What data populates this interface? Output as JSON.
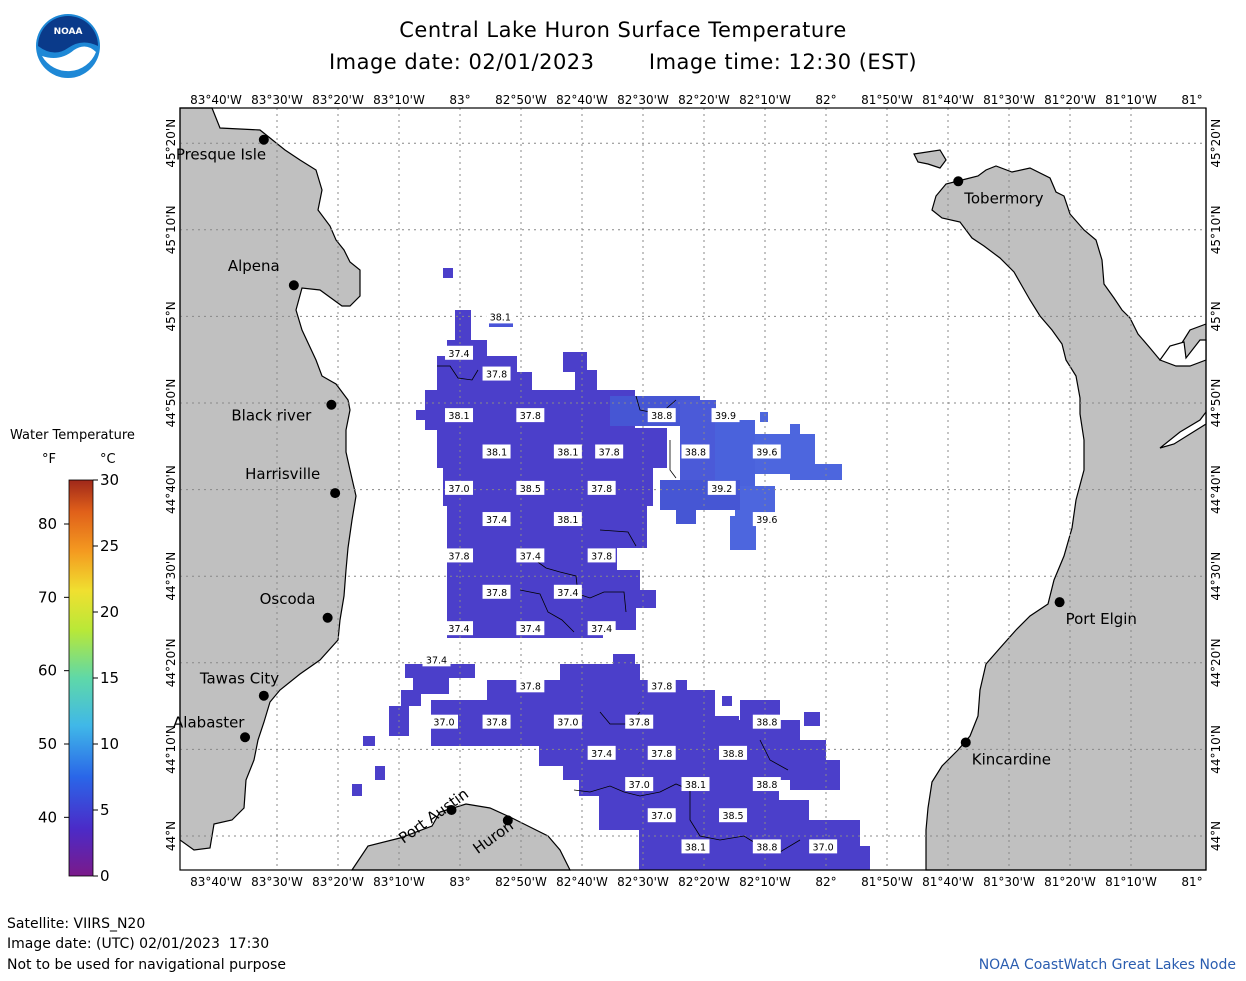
{
  "title": "Central Lake Huron Surface Temperature",
  "image_date": "Image date: 02/01/2023",
  "image_time": "Image time: 12:30 (EST)",
  "lon_labels": [
    "83°40'W",
    "83°30'W",
    "83°20'W",
    "83°10'W",
    "83°",
    "82°50'W",
    "82°40'W",
    "82°30'W",
    "82°20'W",
    "82°10'W",
    "82°",
    "81°50'W",
    "81°40'W",
    "81°30'W",
    "81°20'W",
    "81°10'W",
    "81°"
  ],
  "lat_labels": [
    "44°N",
    "44°10'N",
    "44°20'N",
    "44°30'N",
    "44°40'N",
    "44°50'N",
    "45°N",
    "45°10'N",
    "45°20'N"
  ],
  "cities": [
    {
      "name": "Presque Isle",
      "lon": -83.51,
      "lat": 45.34
    },
    {
      "name": "Alpena",
      "lon": -83.43,
      "lat": 45.06
    },
    {
      "name": "Black river",
      "lon": -83.33,
      "lat": 44.83
    },
    {
      "name": "Harrisville",
      "lon": -83.32,
      "lat": 44.66
    },
    {
      "name": "Oscoda",
      "lon": -83.34,
      "lat": 44.42
    },
    {
      "name": "Tawas City",
      "lon": -83.51,
      "lat": 44.27
    },
    {
      "name": "Alabaster",
      "lon": -83.56,
      "lat": 44.19
    },
    {
      "name": "Port Austin",
      "lon": -83.01,
      "lat": 44.05
    },
    {
      "name": "Huron",
      "lon": -82.86,
      "lat": 44.03
    },
    {
      "name": "Tobermory",
      "lon": -81.66,
      "lat": 45.26
    },
    {
      "name": "Port Elgin",
      "lon": -81.39,
      "lat": 44.45
    },
    {
      "name": "Kincardine",
      "lon": -81.64,
      "lat": 44.18
    }
  ],
  "isotherm_labels": [
    {
      "t": "38.1",
      "lon": -82.88,
      "lat": 45.0
    },
    {
      "t": "37.4",
      "lon": -82.99,
      "lat": 44.93
    },
    {
      "t": "37.8",
      "lon": -82.89,
      "lat": 44.89
    },
    {
      "t": "38.1",
      "lon": -82.99,
      "lat": 44.81
    },
    {
      "t": "37.8",
      "lon": -82.8,
      "lat": 44.81
    },
    {
      "t": "38.8",
      "lon": -82.45,
      "lat": 44.81
    },
    {
      "t": "39.9",
      "lon": -82.28,
      "lat": 44.81
    },
    {
      "t": "38.1",
      "lon": -82.89,
      "lat": 44.74
    },
    {
      "t": "38.1",
      "lon": -82.7,
      "lat": 44.74
    },
    {
      "t": "37.8",
      "lon": -82.59,
      "lat": 44.74
    },
    {
      "t": "38.8",
      "lon": -82.36,
      "lat": 44.74
    },
    {
      "t": "39.6",
      "lon": -82.17,
      "lat": 44.74
    },
    {
      "t": "37.0",
      "lon": -82.99,
      "lat": 44.67
    },
    {
      "t": "38.5",
      "lon": -82.8,
      "lat": 44.67
    },
    {
      "t": "37.8",
      "lon": -82.61,
      "lat": 44.67
    },
    {
      "t": "39.2",
      "lon": -82.29,
      "lat": 44.67
    },
    {
      "t": "37.4",
      "lon": -82.89,
      "lat": 44.61
    },
    {
      "t": "38.1",
      "lon": -82.7,
      "lat": 44.61
    },
    {
      "t": "39.6",
      "lon": -82.17,
      "lat": 44.61
    },
    {
      "t": "37.8",
      "lon": -82.99,
      "lat": 44.54
    },
    {
      "t": "37.4",
      "lon": -82.8,
      "lat": 44.54
    },
    {
      "t": "37.8",
      "lon": -82.61,
      "lat": 44.54
    },
    {
      "t": "37.8",
      "lon": -82.89,
      "lat": 44.47
    },
    {
      "t": "37.4",
      "lon": -82.7,
      "lat": 44.47
    },
    {
      "t": "37.4",
      "lon": -82.99,
      "lat": 44.4
    },
    {
      "t": "37.4",
      "lon": -82.8,
      "lat": 44.4
    },
    {
      "t": "37.4",
      "lon": -82.61,
      "lat": 44.4
    },
    {
      "t": "37.4",
      "lon": -83.05,
      "lat": 44.34
    },
    {
      "t": "37.8",
      "lon": -82.8,
      "lat": 44.29
    },
    {
      "t": "37.8",
      "lon": -82.45,
      "lat": 44.29
    },
    {
      "t": "37.0",
      "lon": -83.03,
      "lat": 44.22
    },
    {
      "t": "37.8",
      "lon": -82.89,
      "lat": 44.22
    },
    {
      "t": "37.0",
      "lon": -82.7,
      "lat": 44.22
    },
    {
      "t": "37.8",
      "lon": -82.51,
      "lat": 44.22
    },
    {
      "t": "38.8",
      "lon": -82.17,
      "lat": 44.22
    },
    {
      "t": "37.4",
      "lon": -82.61,
      "lat": 44.16
    },
    {
      "t": "37.8",
      "lon": -82.45,
      "lat": 44.16
    },
    {
      "t": "38.8",
      "lon": -82.26,
      "lat": 44.16
    },
    {
      "t": "37.0",
      "lon": -82.51,
      "lat": 44.1
    },
    {
      "t": "38.1",
      "lon": -82.36,
      "lat": 44.1
    },
    {
      "t": "38.8",
      "lon": -82.17,
      "lat": 44.1
    },
    {
      "t": "37.0",
      "lon": -82.45,
      "lat": 44.04
    },
    {
      "t": "38.5",
      "lon": -82.26,
      "lat": 44.04
    },
    {
      "t": "38.1",
      "lon": -82.36,
      "lat": 43.98
    },
    {
      "t": "38.8",
      "lon": -82.17,
      "lat": 43.98
    },
    {
      "t": "37.0",
      "lon": -82.02,
      "lat": 43.98
    }
  ],
  "legend": {
    "title": "Water Temperature",
    "unit_f": "°F",
    "unit_c": "°C",
    "f_ticks": [
      "40",
      "50",
      "60",
      "70",
      "80"
    ],
    "c_ticks": [
      "0",
      "5",
      "10",
      "15",
      "20",
      "25",
      "30"
    ]
  },
  "footer": {
    "satellite": "Satellite: VIIRS_N20",
    "utc_date": "Image date: (UTC) 02/01/2023  17:30",
    "disclaimer": "Not to be used for navigational purpose",
    "credit": "NOAA CoastWatch Great Lakes Node"
  },
  "colors": {
    "land": "#c0c0c0",
    "water_sst": "#4a3fc8",
    "grid": "#888888"
  }
}
